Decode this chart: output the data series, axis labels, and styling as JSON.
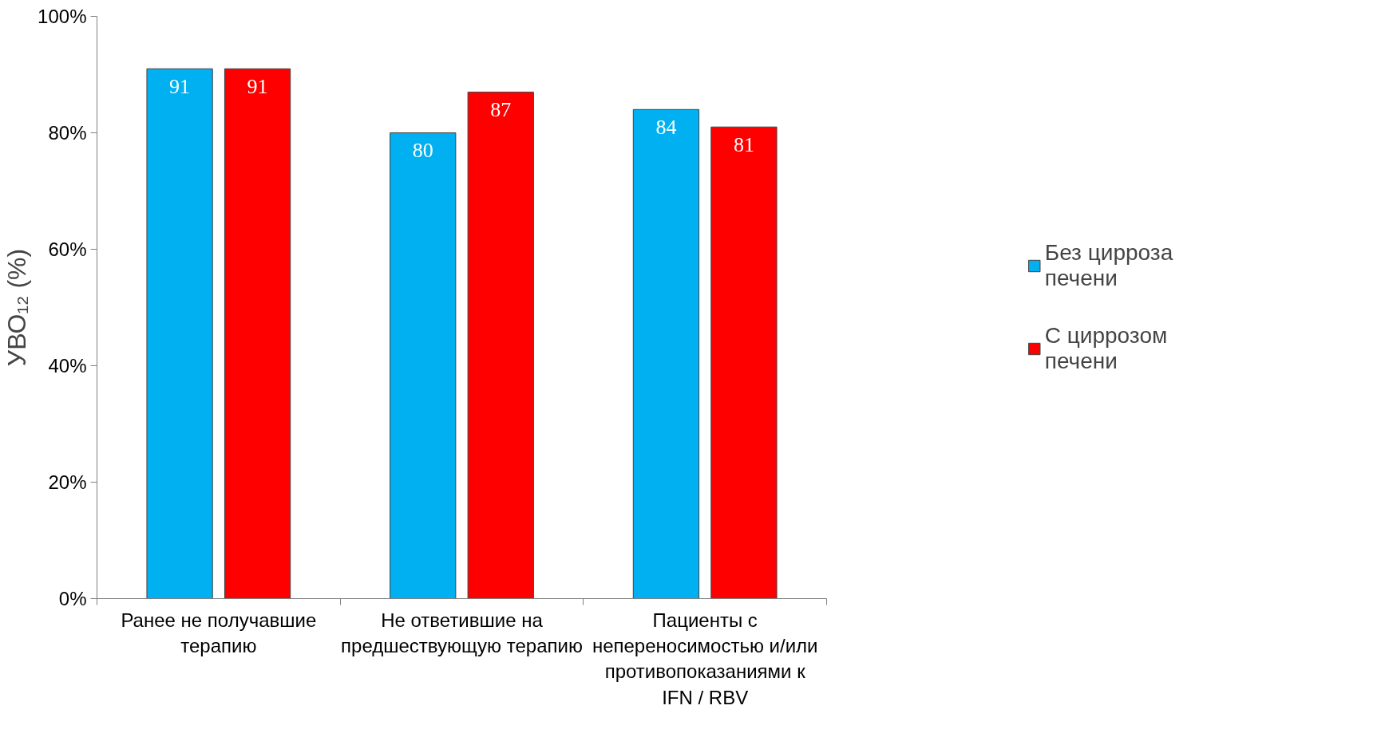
{
  "chart_data": {
    "type": "bar",
    "ylabel": "УВО₁₂ (%)",
    "categories": [
      "Ранее не получавшие терапию",
      "Не ответившие на предшествующую терапию",
      "Пациенты с непереносимостью и/или противопоказаниями к IFN / RBV"
    ],
    "series": [
      {
        "name": "Без цирроза печени",
        "color": "#00b0f0",
        "values": [
          91,
          80,
          84
        ]
      },
      {
        "name": "С циррозом печени",
        "color": "#ff0000",
        "values": [
          91,
          87,
          81
        ]
      }
    ],
    "ylim": [
      0,
      100
    ],
    "yticks": [
      {
        "value": 0,
        "label": "0%"
      },
      {
        "value": 20,
        "label": "20%"
      },
      {
        "value": 40,
        "label": "40%"
      },
      {
        "value": 60,
        "label": "60%"
      },
      {
        "value": 80,
        "label": "80%"
      },
      {
        "value": 100,
        "label": "100%"
      }
    ],
    "data_labels": true,
    "legend": "right",
    "grid": false
  }
}
